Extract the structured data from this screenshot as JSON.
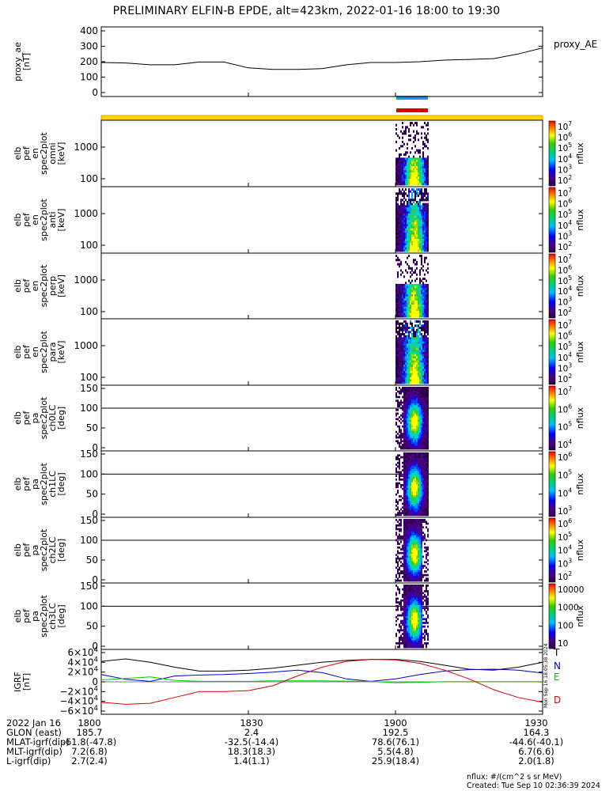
{
  "title": "PRELIMINARY ELFIN-B EPDE, alt=423km, 2022-01-16 18:00 to 19:30",
  "panels": [
    {
      "ylabel": [
        "proxy_ae",
        "[nT]"
      ],
      "right_label": "proxy_AE",
      "yticks": [
        "400",
        "300",
        "200",
        "100",
        "0"
      ]
    },
    {
      "ylabel": [
        "elb",
        "pef",
        "en",
        "spec2plot",
        "omni",
        "[keV]"
      ],
      "yticks": [
        "1000",
        "100"
      ],
      "cbar_ticks": [
        "10^7",
        "10^6",
        "10^5",
        "10^4",
        "10^3",
        "10^2"
      ],
      "cbar_label": "nflux"
    },
    {
      "ylabel": [
        "elb",
        "pef",
        "en",
        "spec2plot",
        "anti",
        "[keV]"
      ],
      "yticks": [
        "1000",
        "100"
      ],
      "cbar_ticks": [
        "10^7",
        "10^6",
        "10^5",
        "10^4",
        "10^3",
        "10^2"
      ],
      "cbar_label": "nflux"
    },
    {
      "ylabel": [
        "elb",
        "pef",
        "en",
        "spec2plot",
        "perp",
        "[keV]"
      ],
      "yticks": [
        "1000",
        "100"
      ],
      "cbar_ticks": [
        "10^7",
        "10^6",
        "10^5",
        "10^4",
        "10^3",
        "10^2"
      ],
      "cbar_label": "nflux"
    },
    {
      "ylabel": [
        "elb",
        "pef",
        "en",
        "spec2plot",
        "para",
        "[keV]"
      ],
      "yticks": [
        "1000",
        "100"
      ],
      "cbar_ticks": [
        "10^7",
        "10^6",
        "10^5",
        "10^4",
        "10^3",
        "10^2"
      ],
      "cbar_label": "nflux"
    },
    {
      "ylabel": [
        "elb",
        "pef",
        "pa",
        "spec2plot",
        "ch0LC",
        "[deg]"
      ],
      "yticks": [
        "150",
        "100",
        "50",
        "0"
      ],
      "cbar_ticks": [
        "10^7",
        "10^6",
        "10^5",
        "10^4"
      ],
      "cbar_label": "nflux"
    },
    {
      "ylabel": [
        "elb",
        "pef",
        "pa",
        "spec2plot",
        "ch1LC",
        "[deg]"
      ],
      "yticks": [
        "150",
        "100",
        "50",
        "0"
      ],
      "cbar_ticks": [
        "10^6",
        "10^5",
        "10^4",
        "10^3"
      ],
      "cbar_label": "nflux"
    },
    {
      "ylabel": [
        "elb",
        "pef",
        "pa",
        "spec2plot",
        "ch2LC",
        "[deg]"
      ],
      "yticks": [
        "150",
        "100",
        "50",
        "0"
      ],
      "cbar_ticks": [
        "10^6",
        "10^5",
        "10^4",
        "10^3",
        "10^2"
      ],
      "cbar_label": "nflux"
    },
    {
      "ylabel": [
        "elb",
        "pef",
        "pa",
        "spec2plot",
        "ch3LC",
        "[deg]"
      ],
      "yticks": [
        "150",
        "100",
        "50",
        "0"
      ],
      "cbar_ticks": [
        "10000",
        "1000",
        "100",
        "10"
      ],
      "cbar_label": "nflux"
    },
    {
      "ylabel": [
        "IGRF",
        "[nT]"
      ],
      "yticks": [
        "6×10^4",
        "4×10^4",
        "2×10^4",
        "0",
        "−2×10^4",
        "−4×10^4",
        "−6×10^4"
      ],
      "right_labels": [
        "T",
        "N",
        "E",
        "D"
      ]
    }
  ],
  "chart_data": {
    "type": "line",
    "x_labels": [
      "1800",
      "1830",
      "1900",
      "1930"
    ],
    "proxy_ae": {
      "ylim": [
        0,
        400
      ],
      "x": [
        "18:00",
        "18:05",
        "18:10",
        "18:15",
        "18:20",
        "18:25",
        "18:30",
        "18:35",
        "18:40",
        "18:45",
        "18:50",
        "18:55",
        "19:00",
        "19:05",
        "19:10",
        "19:15",
        "19:20",
        "19:25",
        "19:30"
      ],
      "values": [
        195,
        192,
        180,
        180,
        198,
        198,
        160,
        150,
        150,
        155,
        180,
        195,
        195,
        200,
        210,
        215,
        220,
        250,
        290
      ]
    },
    "igrf": {
      "ylim": [
        -60000,
        60000
      ],
      "x": [
        "18:00",
        "18:05",
        "18:10",
        "18:15",
        "18:20",
        "18:25",
        "18:30",
        "18:35",
        "18:40",
        "18:45",
        "18:50",
        "18:55",
        "19:00",
        "19:05",
        "19:10",
        "19:15",
        "19:20",
        "19:25",
        "19:30"
      ],
      "series": [
        {
          "name": "T",
          "color": "#000000",
          "values": [
            42000,
            47000,
            40000,
            30000,
            22000,
            22000,
            24000,
            28000,
            34000,
            40000,
            44000,
            46000,
            46000,
            42000,
            34000,
            26000,
            24000,
            30000,
            40000
          ]
        },
        {
          "name": "N",
          "color": "#0000cc",
          "values": [
            15000,
            5000,
            1000,
            12000,
            14000,
            15000,
            17000,
            20000,
            24000,
            19000,
            6000,
            1000,
            6000,
            15000,
            22000,
            25000,
            26000,
            24000,
            18000
          ]
        },
        {
          "name": "E",
          "color": "#00cc00",
          "values": [
            4000,
            7000,
            10000,
            3000,
            1000,
            1000,
            1000,
            2000,
            2000,
            2000,
            1500,
            1000,
            -2000,
            -1000,
            500,
            500,
            500,
            500,
            500
          ]
        },
        {
          "name": "D",
          "color": "#dd0000",
          "values": [
            -42000,
            -46000,
            -44000,
            -32000,
            -20000,
            -20000,
            -18000,
            -8000,
            12000,
            30000,
            42000,
            46000,
            45000,
            38000,
            24000,
            6000,
            -16000,
            -32000,
            -42000
          ]
        }
      ]
    }
  },
  "footer": {
    "rows": [
      {
        "label": "2022 Jan 16",
        "values": [
          "1800",
          "1830",
          "1900",
          "1930"
        ]
      },
      {
        "label": "GLON (east)",
        "values": [
          "185.7",
          "2.4",
          "192.5",
          "164.3"
        ]
      },
      {
        "label": "MLAT-igrf(dip)",
        "values": [
          "-61.8(-47.8)",
          "-32.5(-14.4)",
          "78.6(76.1)",
          "-44.6(-40.1)"
        ]
      },
      {
        "label": "MLT-igrf(dip)",
        "values": [
          "7.2(6.8)",
          "18.3(18.3)",
          "5.5(4.8)",
          "6.7(6.6)"
        ]
      },
      {
        "label": "L-igrf(dip)",
        "values": [
          "2.7(2.4)",
          "1.4(1.1)",
          "25.9(18.4)",
          "2.0(1.8)"
        ]
      }
    ],
    "units_note": "nflux: #/(cm^2 s sr MeV)",
    "created": "Created: Tue Sep 10 02:36:39 2024",
    "side_stamp": "Mon Sep 16 18:05:38 2024"
  },
  "colors": {
    "fgs_blue": "#1e90ff",
    "fgs_red": "#e00000",
    "yellow_bar": "#ffd700",
    "yellow_bar_edge": "#e8a000"
  }
}
